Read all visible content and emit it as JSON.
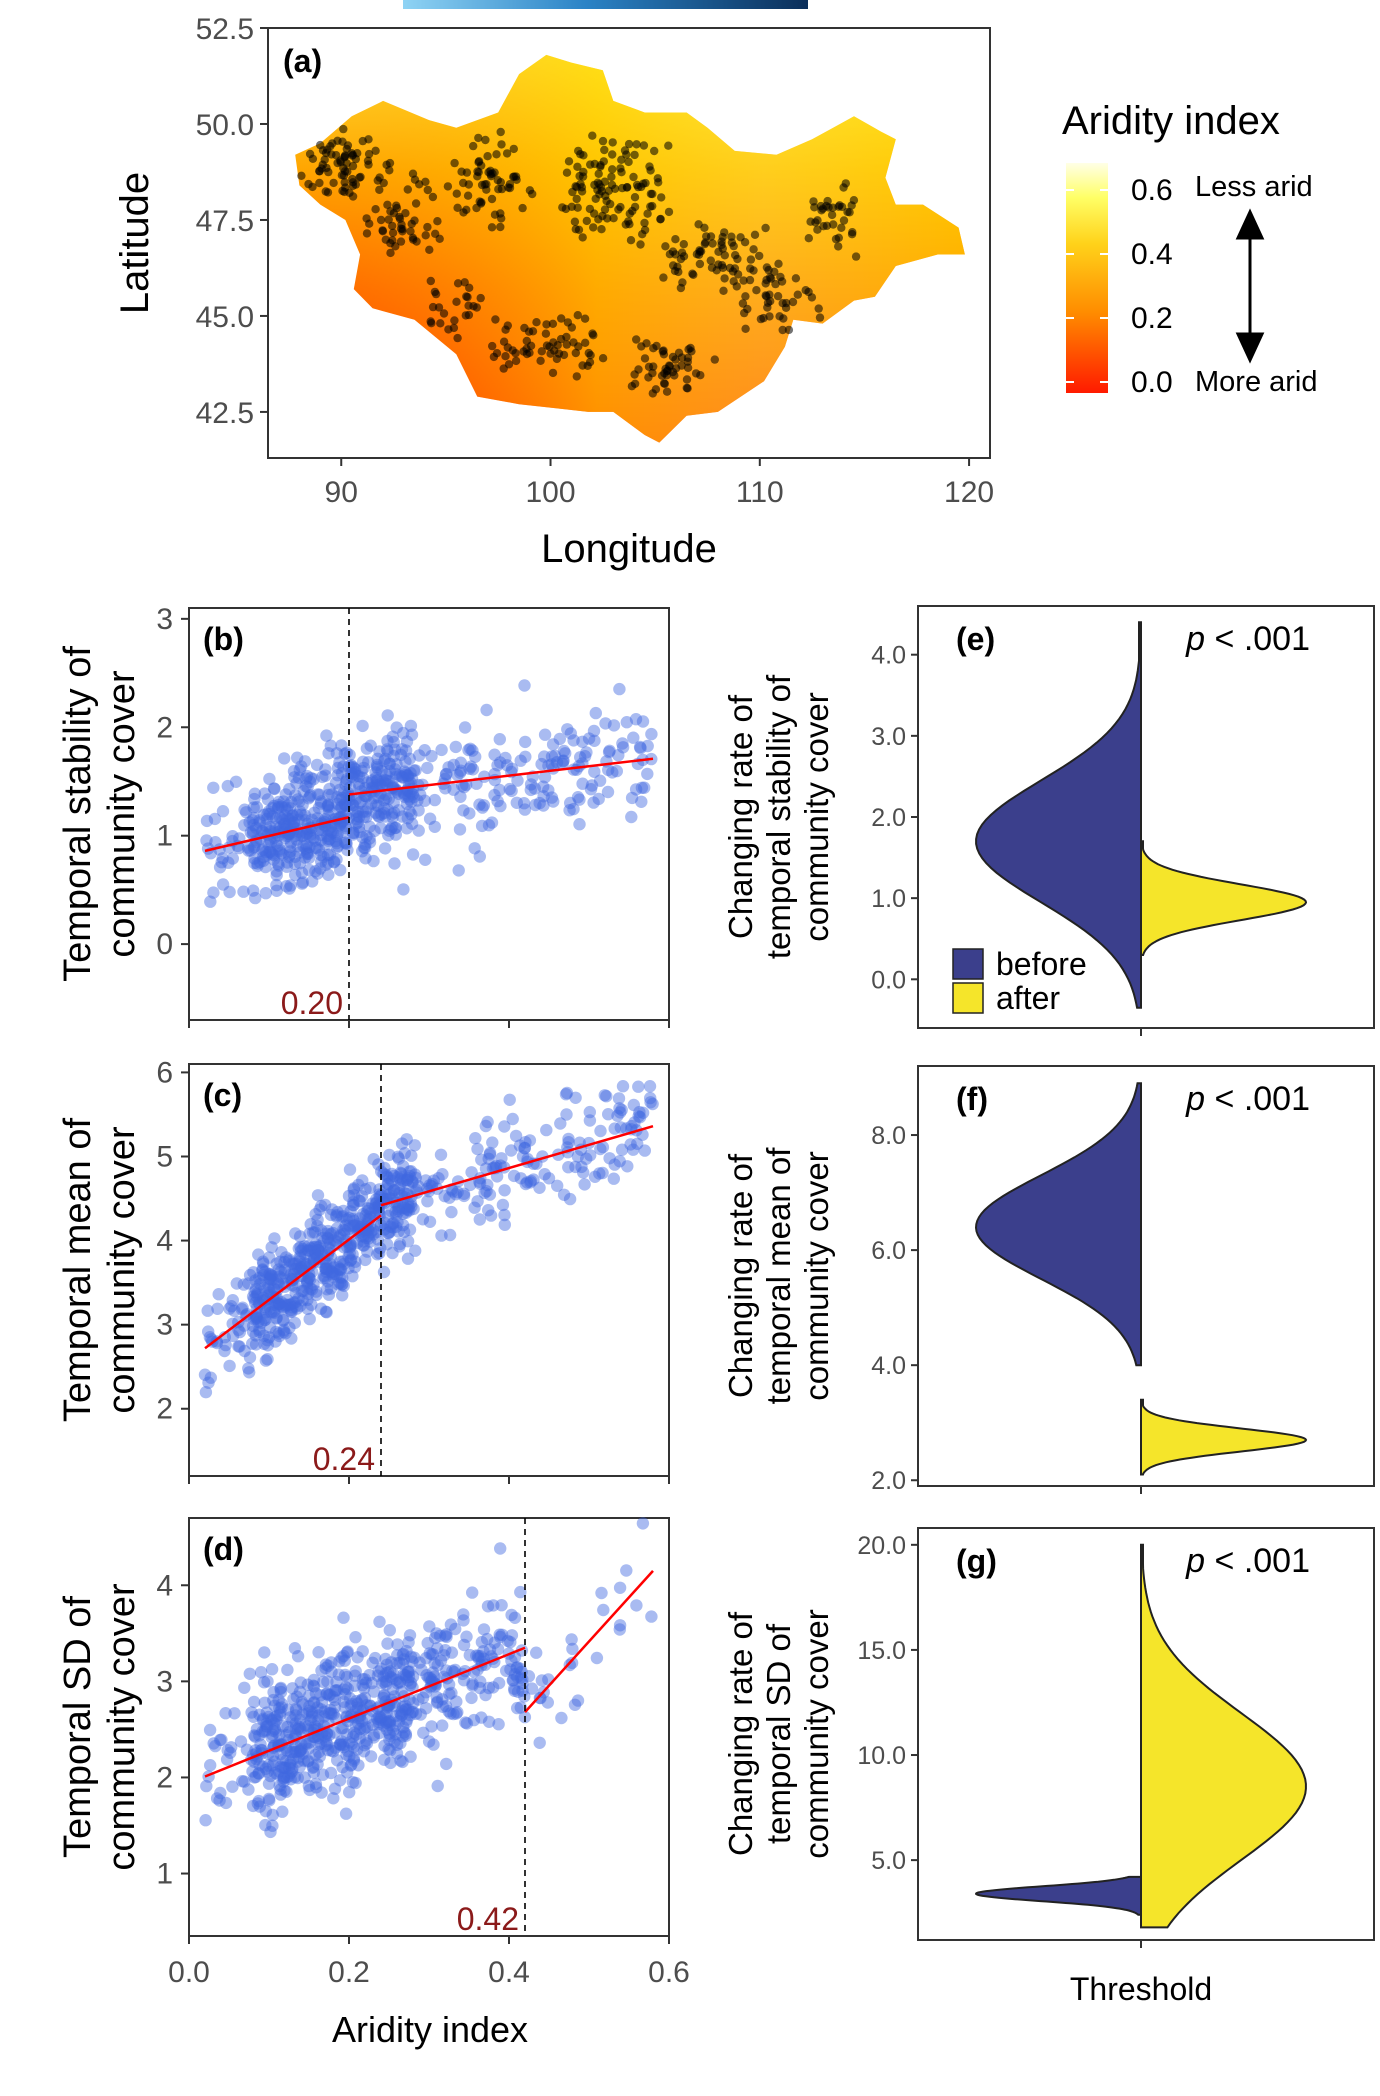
{
  "panel_a": {
    "label": "(a)",
    "xlabel": "Longitude",
    "ylabel": "Latitude",
    "xticks": [
      90,
      100,
      110,
      120
    ],
    "yticks": [
      "42.5",
      "45.0",
      "47.5",
      "50.0",
      "52.5"
    ],
    "xlim": [
      86.5,
      121
    ],
    "ylim": [
      41.3,
      52.5
    ],
    "legend_title": "Aridity index",
    "legend_ticks": [
      "0.6",
      "0.4",
      "0.2",
      "0.0"
    ],
    "legend_less": "Less arid",
    "legend_more": "More arid",
    "colors": {
      "low": "#ff1a00",
      "mid": "#ff9900",
      "high": "#ffff33",
      "top": "#ffffe0"
    }
  },
  "scatter_common": {
    "xlabel": "Aridity index",
    "xticks": [
      "0.0",
      "0.2",
      "0.4",
      "0.6"
    ],
    "xlim": [
      0,
      0.6
    ],
    "point_color": "#4169e1",
    "line_color": "#ff0000"
  },
  "chart_data": [
    {
      "type": "scatter",
      "panel": "b",
      "label": "(b)",
      "ylabel_line1": "Temporal stability of",
      "ylabel_line2": "community cover",
      "yticks": [
        "0",
        "1",
        "2",
        "3"
      ],
      "ylim": [
        -0.7,
        3.1
      ],
      "threshold": 0.2,
      "threshold_label": "0.20",
      "fit_segments": [
        [
          [
            0.02,
            0.86
          ],
          [
            0.2,
            1.17
          ]
        ],
        [
          [
            0.2,
            1.38
          ],
          [
            0.58,
            1.71
          ]
        ]
      ]
    },
    {
      "type": "scatter",
      "panel": "c",
      "label": "(c)",
      "ylabel_line1": "Temporal mean of",
      "ylabel_line2": "community cover",
      "yticks": [
        "2",
        "3",
        "4",
        "5",
        "6"
      ],
      "ylim": [
        1.2,
        6.1
      ],
      "threshold": 0.24,
      "threshold_label": "0.24",
      "fit_segments": [
        [
          [
            0.02,
            2.72
          ],
          [
            0.24,
            4.3
          ]
        ],
        [
          [
            0.24,
            4.42
          ],
          [
            0.58,
            5.36
          ]
        ]
      ]
    },
    {
      "type": "scatter",
      "panel": "d",
      "label": "(d)",
      "ylabel_line1": "Temporal SD of",
      "ylabel_line2": "community cover",
      "yticks": [
        "1",
        "2",
        "3",
        "4"
      ],
      "ylim": [
        0.35,
        4.7
      ],
      "threshold": 0.42,
      "threshold_label": "0.42",
      "fit_segments": [
        [
          [
            0.02,
            2.01
          ],
          [
            0.42,
            3.35
          ]
        ],
        [
          [
            0.42,
            2.68
          ],
          [
            0.58,
            4.15
          ]
        ]
      ]
    },
    {
      "type": "violin",
      "panel": "e",
      "label": "(e)",
      "ylabel_line1": "Changing rate of",
      "ylabel_line2": "temporal stability of",
      "ylabel_line3": "community cover",
      "yticks": [
        "0.0",
        "1.0",
        "2.0",
        "3.0",
        "4.0"
      ],
      "ylim": [
        -0.6,
        4.6
      ],
      "p_label": "p < .001",
      "before": {
        "min": -0.35,
        "max": 4.4,
        "mode": 1.7,
        "spread": 0.75
      },
      "after": {
        "min": 0.3,
        "max": 1.7,
        "mode": 0.95,
        "spread": 0.22
      }
    },
    {
      "type": "violin",
      "panel": "f",
      "label": "(f)",
      "ylabel_line1": "Changing rate of",
      "ylabel_line2": "temporal mean of",
      "ylabel_line3": "community cover",
      "yticks": [
        "2.0",
        "4.0",
        "6.0",
        "8.0"
      ],
      "ylim": [
        1.9,
        9.2
      ],
      "p_label": "p < .001",
      "before": {
        "min": 4.0,
        "max": 8.9,
        "mode": 6.4,
        "spread": 0.9
      },
      "after": {
        "min": 2.1,
        "max": 3.4,
        "mode": 2.7,
        "spread": 0.2
      }
    },
    {
      "type": "violin",
      "panel": "g",
      "label": "(g)",
      "ylabel_line1": "Changing rate of",
      "ylabel_line2": "temporal SD of",
      "ylabel_line3": "community cover",
      "yticks": [
        "5.0",
        "10.0",
        "15.0",
        "20.0"
      ],
      "ylim": [
        1.2,
        20.8
      ],
      "p_label": "p < .001",
      "xlabel": "Threshold",
      "before": {
        "min": 2.4,
        "max": 4.2,
        "mode": 3.4,
        "spread": 0.35
      },
      "after": {
        "min": 1.8,
        "max": 20.0,
        "mode": 8.5,
        "spread": 3.5
      }
    }
  ],
  "violin_legend": {
    "before": "before",
    "after": "after",
    "before_color": "#3b3f8c",
    "after_color": "#f5e52a"
  }
}
